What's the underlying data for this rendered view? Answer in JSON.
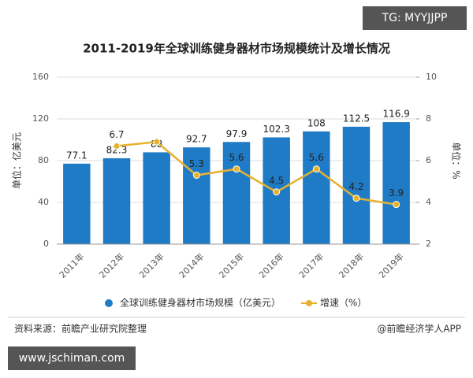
{
  "chart_data": {
    "type": "bar-line",
    "title": "2011-2019年全球训练健身器材市场规模统计及增长情况",
    "categories": [
      "2011年",
      "2012年",
      "2013年",
      "2014年",
      "2015年",
      "2016年",
      "2017年",
      "2018年",
      "2019年"
    ],
    "series": [
      {
        "name": "全球训练健身器材市场规模（亿美元）",
        "type": "bar",
        "color": "#1f7bc6",
        "values": [
          77.1,
          82.3,
          88,
          92.7,
          97.9,
          102.3,
          108,
          112.5,
          116.9
        ]
      },
      {
        "name": "增速（%）",
        "type": "line",
        "axis": "y2",
        "color": "#e6b12e",
        "values": [
          null,
          6.7,
          6.9,
          5.3,
          5.6,
          4.5,
          5.6,
          4.2,
          3.9
        ],
        "value_labels": [
          null,
          "6.7",
          null,
          "5.3",
          "5.6",
          "4.5",
          "5.6",
          "4.2",
          "3.9"
        ]
      }
    ],
    "ylim": [
      0,
      160
    ],
    "yticks": [
      0,
      40,
      80,
      120,
      160
    ],
    "y2lim": [
      2,
      10
    ],
    "y2ticks": [
      2,
      4,
      6,
      8,
      10
    ],
    "ylabel": "单位：亿美元",
    "y2label": "单位：%",
    "grid": true,
    "source": "资料来源：前瞻产业研究院整理",
    "credit": "@前瞻经济学人APP",
    "watermark_top": "TG: MYYJJPP",
    "watermark_bottom": "www.jschiman.com"
  }
}
